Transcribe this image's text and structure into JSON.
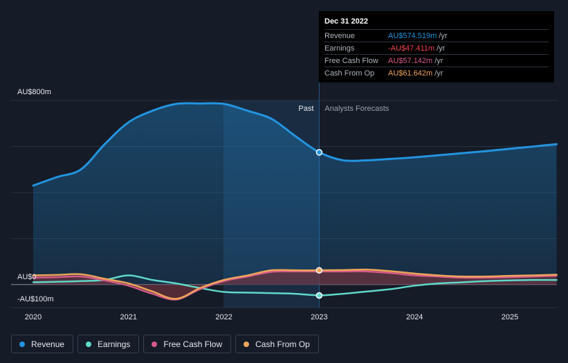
{
  "colors": {
    "background": "#151b27",
    "revenue": "#2394df",
    "earnings": "#5fd8c8",
    "fcf": "#d55a8a",
    "cfo": "#eea55a",
    "grid": "#2a3140"
  },
  "chart_data": {
    "type": "line",
    "title": "",
    "xlabel": "",
    "ylabel": "",
    "y_unit": "AU$ m",
    "ylim": [
      -100,
      800
    ],
    "y_tick_labels": [
      {
        "value": 800,
        "label": "AU$800m"
      },
      {
        "value": 0,
        "label": "AU$0"
      },
      {
        "value": -100,
        "label": "-AU$100m"
      }
    ],
    "x_ticks": [
      {
        "value": 2020,
        "label": "2020"
      },
      {
        "value": 2021,
        "label": "2021"
      },
      {
        "value": 2022,
        "label": "2022"
      },
      {
        "value": 2023,
        "label": "2023"
      },
      {
        "value": 2024,
        "label": "2024"
      },
      {
        "value": 2025,
        "label": "2025"
      }
    ],
    "xlim": [
      2019.78,
      2025.49
    ],
    "divider_x": 2023,
    "past_band_start": 2022,
    "past_label": "Past",
    "forecast_label": "Analysts Forecasts",
    "series": [
      {
        "name": "Revenue",
        "key": "revenue",
        "points": [
          [
            2020,
            430
          ],
          [
            2020.25,
            467
          ],
          [
            2020.5,
            500
          ],
          [
            2020.75,
            610
          ],
          [
            2021,
            705
          ],
          [
            2021.25,
            755
          ],
          [
            2021.5,
            785
          ],
          [
            2021.75,
            787
          ],
          [
            2022,
            785
          ],
          [
            2022.25,
            755
          ],
          [
            2022.5,
            720
          ],
          [
            2022.75,
            645
          ],
          [
            2023,
            575
          ],
          [
            2023.25,
            540
          ],
          [
            2023.5,
            540
          ],
          [
            2023.75,
            546
          ],
          [
            2024,
            553
          ],
          [
            2024.25,
            562
          ],
          [
            2024.5,
            571
          ],
          [
            2024.75,
            580
          ],
          [
            2025,
            590
          ],
          [
            2025.25,
            600
          ],
          [
            2025.49,
            610
          ]
        ]
      },
      {
        "name": "Earnings",
        "key": "earnings",
        "points": [
          [
            2020,
            10
          ],
          [
            2020.25,
            12
          ],
          [
            2020.5,
            15
          ],
          [
            2020.75,
            20
          ],
          [
            2021,
            40
          ],
          [
            2021.25,
            20
          ],
          [
            2021.5,
            5
          ],
          [
            2021.75,
            -15
          ],
          [
            2022,
            -32
          ],
          [
            2022.25,
            -35
          ],
          [
            2022.5,
            -37
          ],
          [
            2022.75,
            -40
          ],
          [
            2023,
            -47
          ],
          [
            2023.25,
            -40
          ],
          [
            2023.5,
            -30
          ],
          [
            2023.75,
            -20
          ],
          [
            2024,
            -5
          ],
          [
            2024.25,
            5
          ],
          [
            2024.5,
            10
          ],
          [
            2024.75,
            15
          ],
          [
            2025,
            18
          ],
          [
            2025.25,
            20
          ],
          [
            2025.49,
            20
          ]
        ]
      },
      {
        "name": "Free Cash Flow",
        "key": "fcf",
        "points": [
          [
            2020,
            30
          ],
          [
            2020.25,
            32
          ],
          [
            2020.5,
            35
          ],
          [
            2020.75,
            18
          ],
          [
            2021,
            -5
          ],
          [
            2021.25,
            -40
          ],
          [
            2021.5,
            -65
          ],
          [
            2021.75,
            -20
          ],
          [
            2022,
            15
          ],
          [
            2022.25,
            35
          ],
          [
            2022.5,
            55
          ],
          [
            2022.75,
            57
          ],
          [
            2023,
            57
          ],
          [
            2023.25,
            57
          ],
          [
            2023.5,
            57
          ],
          [
            2023.75,
            50
          ],
          [
            2024,
            40
          ],
          [
            2024.25,
            35
          ],
          [
            2024.5,
            30
          ],
          [
            2024.75,
            30
          ],
          [
            2025,
            32
          ],
          [
            2025.25,
            35
          ],
          [
            2025.49,
            38
          ]
        ]
      },
      {
        "name": "Cash From Op",
        "key": "cfo",
        "points": [
          [
            2020,
            40
          ],
          [
            2020.25,
            42
          ],
          [
            2020.5,
            45
          ],
          [
            2020.75,
            25
          ],
          [
            2021,
            5
          ],
          [
            2021.25,
            -30
          ],
          [
            2021.5,
            -62
          ],
          [
            2021.75,
            -15
          ],
          [
            2022,
            20
          ],
          [
            2022.25,
            40
          ],
          [
            2022.5,
            62
          ],
          [
            2022.75,
            62
          ],
          [
            2023,
            62
          ],
          [
            2023.25,
            63
          ],
          [
            2023.5,
            65
          ],
          [
            2023.75,
            58
          ],
          [
            2024,
            48
          ],
          [
            2024.25,
            40
          ],
          [
            2024.5,
            35
          ],
          [
            2024.75,
            35
          ],
          [
            2025,
            38
          ],
          [
            2025.25,
            40
          ],
          [
            2025.49,
            43
          ]
        ]
      }
    ],
    "highlight": {
      "x": 2023,
      "markers": [
        {
          "key": "revenue",
          "value": 574.519
        },
        {
          "key": "cfo",
          "value": 61.642
        },
        {
          "key": "earnings",
          "value": -47.411
        }
      ]
    }
  },
  "tooltip": {
    "date": "Dec 31 2022",
    "rows": [
      {
        "name": "Revenue",
        "value": "AU$574.519m",
        "unit": "/yr",
        "color": "#2394df"
      },
      {
        "name": "Earnings",
        "value": "-AU$47.411m",
        "unit": "/yr",
        "color": "#f2444c"
      },
      {
        "name": "Free Cash Flow",
        "value": "AU$57.142m",
        "unit": "/yr",
        "color": "#d55a8a"
      },
      {
        "name": "Cash From Op",
        "value": "AU$61.642m",
        "unit": "/yr",
        "color": "#eea55a"
      }
    ]
  },
  "legend": [
    {
      "label": "Revenue",
      "color": "#2394df"
    },
    {
      "label": "Earnings",
      "color": "#5fd8c8"
    },
    {
      "label": "Free Cash Flow",
      "color": "#d55a8a"
    },
    {
      "label": "Cash From Op",
      "color": "#eea55a"
    }
  ]
}
